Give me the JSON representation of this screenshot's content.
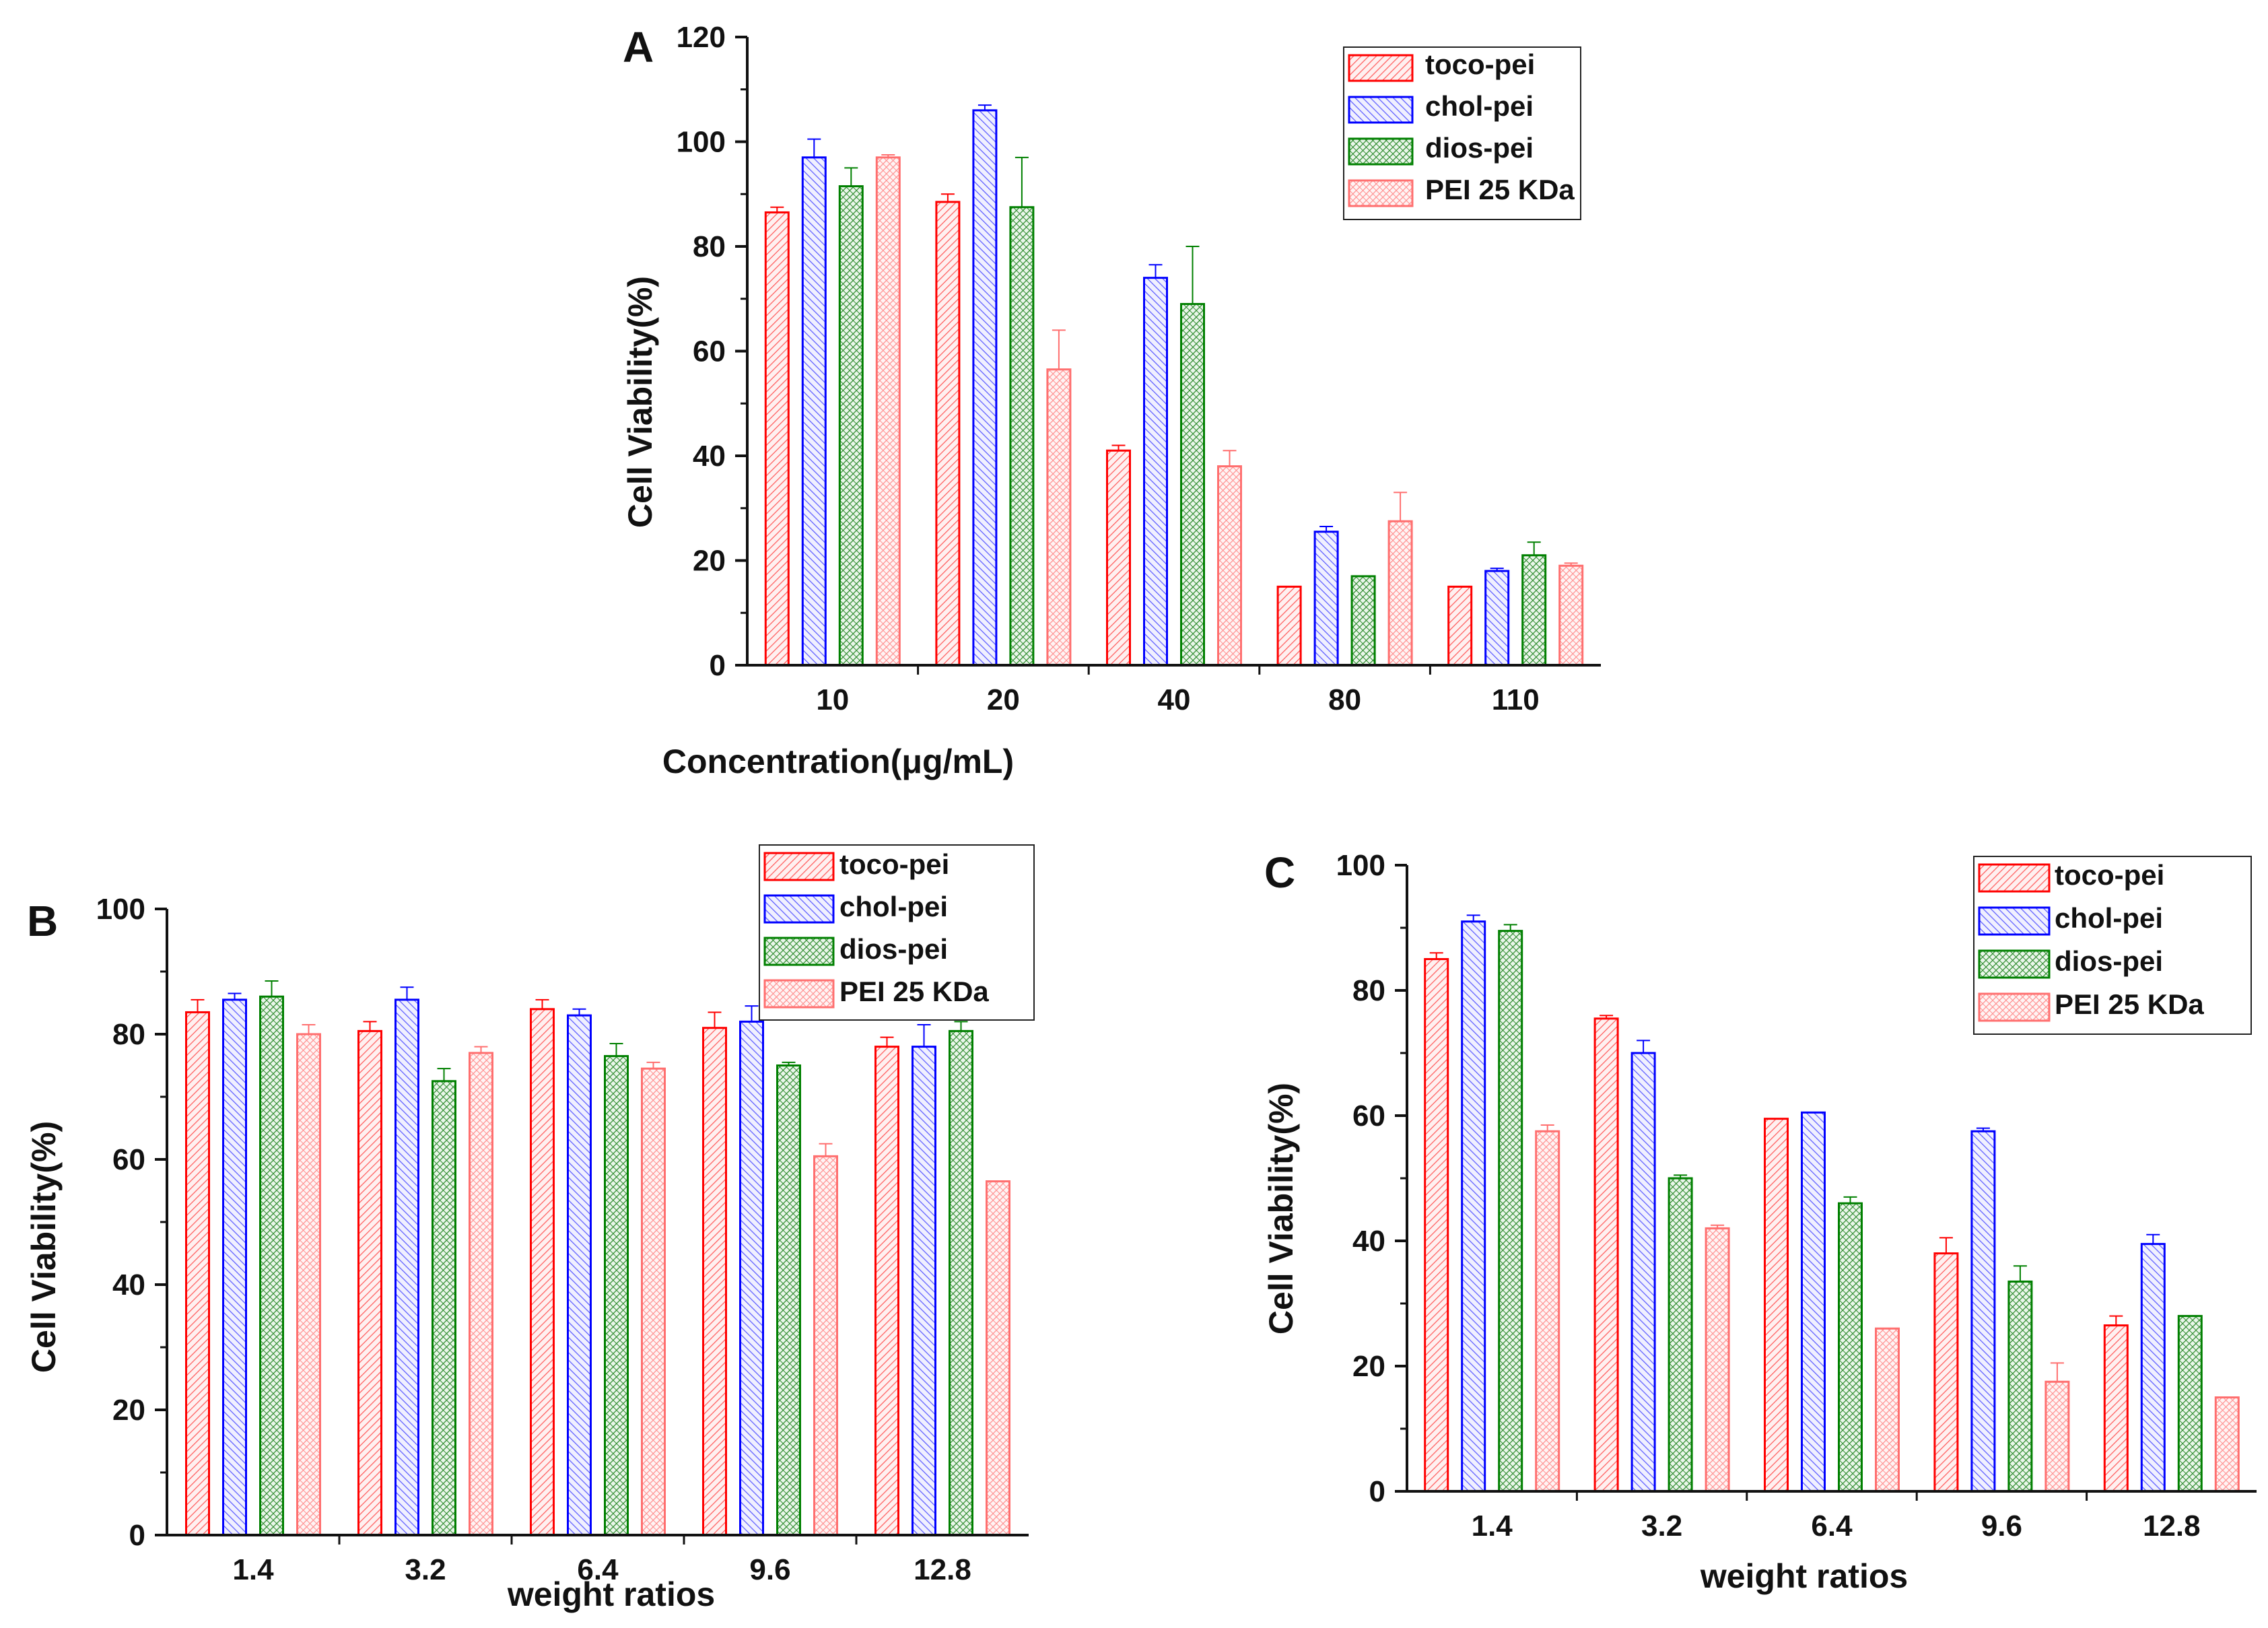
{
  "series_styles": [
    {
      "key": "toco",
      "stroke": "#ff0000",
      "fill": "#ff5c5c",
      "bg": "#fff0f0"
    },
    {
      "key": "chol",
      "stroke": "#0000ff",
      "fill": "#5c5cff",
      "bg": "#f0f0ff"
    },
    {
      "key": "dios",
      "stroke": "#008000",
      "fill": "#2e8b2e",
      "bg": "#eaf6ea"
    },
    {
      "key": "pei25",
      "stroke": "#ff6f6f",
      "fill": "#ff8f8f",
      "bg": "#fff4f4"
    }
  ],
  "chart_data": [
    {
      "id": "A",
      "type": "bar",
      "panel_label": "A",
      "xlabel": "Concentration(μg/mL)",
      "ylabel": "Cell  Viability(%)",
      "ylim": [
        0,
        120
      ],
      "yticks": [
        0,
        20,
        40,
        60,
        80,
        100,
        120
      ],
      "categories": [
        "10",
        "20",
        "40",
        "80",
        "110"
      ],
      "legend_position": "top-right",
      "series": [
        {
          "name": "toco-pei",
          "values": [
            86.5,
            88.5,
            41,
            15,
            15
          ],
          "errors": [
            1,
            1.5,
            1,
            0,
            0
          ]
        },
        {
          "name": "chol-pei",
          "values": [
            97,
            106,
            74,
            25.5,
            18
          ],
          "errors": [
            3.5,
            1,
            2.5,
            1,
            0.5
          ]
        },
        {
          "name": "dios-pei",
          "values": [
            91.5,
            87.5,
            69,
            17,
            21
          ],
          "errors": [
            3.5,
            9.5,
            11,
            0,
            2.5
          ]
        },
        {
          "name": "PEI 25 KDa",
          "values": [
            97,
            56.5,
            38,
            27.5,
            19
          ],
          "errors": [
            0.5,
            7.5,
            3,
            5.5,
            0.5
          ]
        }
      ]
    },
    {
      "id": "B",
      "type": "bar",
      "panel_label": "B",
      "xlabel": "weight ratios",
      "ylabel": "Cell  Viability(%)",
      "ylim": [
        0,
        100
      ],
      "yticks": [
        0,
        20,
        40,
        60,
        80,
        100
      ],
      "categories": [
        "1.4",
        "3.2",
        "6.4",
        "9.6",
        "12.8"
      ],
      "legend_position": "top-right",
      "series": [
        {
          "name": "toco-pei",
          "values": [
            83.5,
            80.5,
            84,
            81,
            78
          ],
          "errors": [
            2,
            1.5,
            1.5,
            2.5,
            1.5
          ]
        },
        {
          "name": "chol-pei",
          "values": [
            85.5,
            85.5,
            83,
            82,
            78
          ],
          "errors": [
            1,
            2,
            1,
            2.5,
            3.5
          ]
        },
        {
          "name": "dios-pei",
          "values": [
            86,
            72.5,
            76.5,
            75,
            80.5
          ],
          "errors": [
            2.5,
            2,
            2,
            0.5,
            1.5
          ]
        },
        {
          "name": "PEI 25 KDa",
          "values": [
            80,
            77,
            74.5,
            60.5,
            56.5
          ],
          "errors": [
            1.5,
            1,
            1,
            2,
            0
          ]
        }
      ]
    },
    {
      "id": "C",
      "type": "bar",
      "panel_label": "C",
      "xlabel": "weight ratios",
      "ylabel": "Cell  Viability(%)",
      "ylim": [
        0,
        100
      ],
      "yticks": [
        0,
        20,
        40,
        60,
        80,
        100
      ],
      "categories": [
        "1.4",
        "3.2",
        "6.4",
        "9.6",
        "12.8"
      ],
      "legend_position": "top-right",
      "series": [
        {
          "name": "toco-pei",
          "values": [
            85,
            75.5,
            59.5,
            38,
            26.5
          ],
          "errors": [
            1,
            0.5,
            0,
            2.5,
            1.5
          ]
        },
        {
          "name": "chol-pei",
          "values": [
            91,
            70,
            60.5,
            57.5,
            39.5
          ],
          "errors": [
            1,
            2,
            0,
            0.5,
            1.5
          ]
        },
        {
          "name": "dios-pei",
          "values": [
            89.5,
            50,
            46,
            33.5,
            28
          ],
          "errors": [
            1,
            0.5,
            1,
            2.5,
            0
          ]
        },
        {
          "name": "PEI 25 KDa",
          "values": [
            57.5,
            42,
            26,
            17.5,
            15
          ],
          "errors": [
            1,
            0.5,
            0,
            3,
            0
          ]
        }
      ]
    }
  ]
}
